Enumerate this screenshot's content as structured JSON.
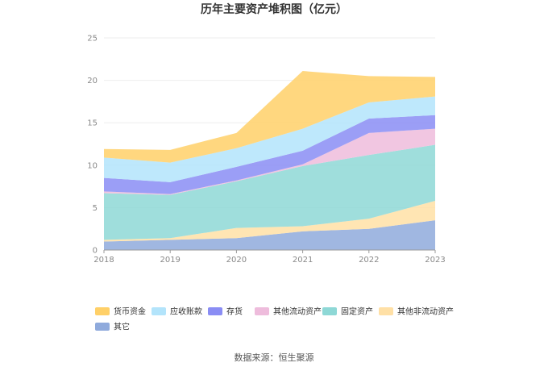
{
  "chart_data": {
    "type": "area",
    "stacked": true,
    "title": "历年主要资产堆积图（亿元）",
    "source": "数据来源：恒生聚源",
    "x": [
      "2018",
      "2019",
      "2020",
      "2021",
      "2022",
      "2023"
    ],
    "ylim": [
      0,
      25
    ],
    "yticks": [
      "0",
      "5",
      "10",
      "15",
      "20",
      "25"
    ],
    "grid": true,
    "legend_position": "bottom",
    "series": [
      {
        "name": "其它",
        "color": "#8faadc",
        "values": [
          1.0,
          1.2,
          1.4,
          2.2,
          2.5,
          3.5
        ]
      },
      {
        "name": "其他非流动资产",
        "color": "#ffe0a6",
        "values": [
          0.2,
          0.2,
          1.2,
          0.6,
          1.2,
          2.3
        ]
      },
      {
        "name": "固定资产",
        "color": "#8ed8d6",
        "values": [
          5.5,
          5.1,
          5.5,
          7.1,
          7.5,
          6.6
        ]
      },
      {
        "name": "其他流动资产",
        "color": "#eebcdc",
        "values": [
          0.2,
          0.1,
          0.1,
          0.2,
          2.6,
          1.9
        ]
      },
      {
        "name": "存货",
        "color": "#8a8df4",
        "values": [
          1.6,
          1.4,
          1.6,
          1.6,
          1.7,
          1.6
        ]
      },
      {
        "name": "应收账款",
        "color": "#b3e4fb",
        "values": [
          2.4,
          2.3,
          2.2,
          2.6,
          1.9,
          2.2
        ]
      },
      {
        "name": "货币资金",
        "color": "#ffd068",
        "values": [
          1.0,
          1.5,
          1.8,
          6.8,
          3.1,
          2.3
        ]
      }
    ],
    "legend_order": [
      "货币资金",
      "应收账款",
      "存货",
      "其他流动资产",
      "固定资产",
      "其他非流动资产",
      "其它"
    ]
  }
}
